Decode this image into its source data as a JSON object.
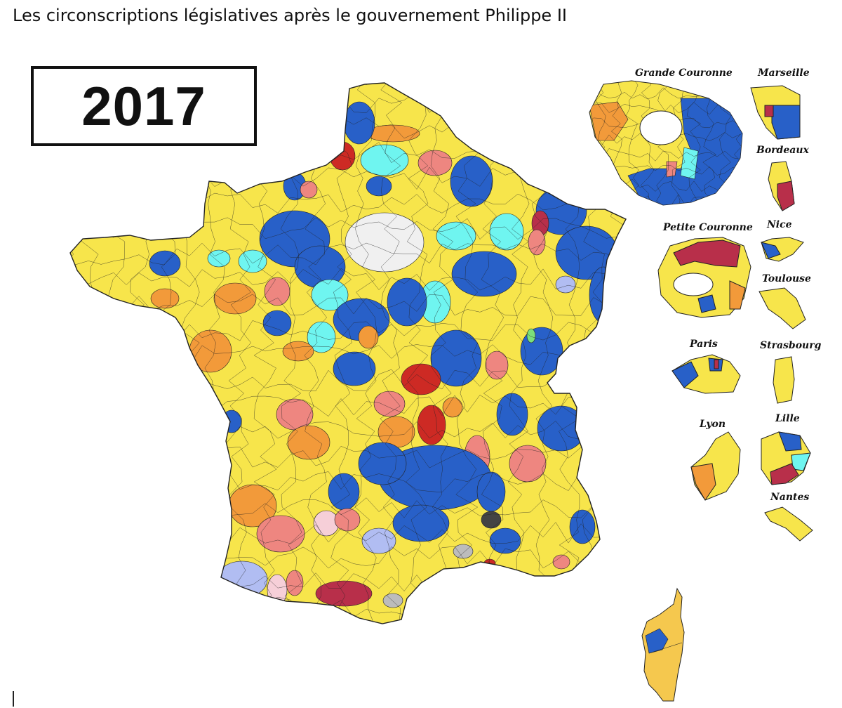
{
  "title": "Les circonscriptions législatives après le gouvernement Philippe II",
  "year": "2017",
  "inset_labels": {
    "grande_couronne": "Grande Couronne",
    "marseille": "Marseille",
    "bordeaux": "Bordeaux",
    "petite_couronne": "Petite Couronne",
    "nice": "Nice",
    "toulouse": "Toulouse",
    "paris": "Paris",
    "strasbourg": "Strasbourg",
    "lyon": "Lyon",
    "lille": "Lille",
    "nantes": "Nantes"
  },
  "colors": {
    "yellow": "#f7e54b",
    "blue": "#2860c8",
    "cyan": "#6ff5f0",
    "salmon": "#ee8680",
    "orange": "#f29a3a",
    "red": "#cd2a24",
    "crimson": "#b82f4a",
    "pink": "#f6cfd8",
    "lavender": "#b1bdf2",
    "gray": "#bcbcbc",
    "dark": "#444444",
    "green": "#7be07b",
    "lightgray": "#f0f0f0",
    "corsica": "#f5c84e",
    "border": "#222222"
  }
}
